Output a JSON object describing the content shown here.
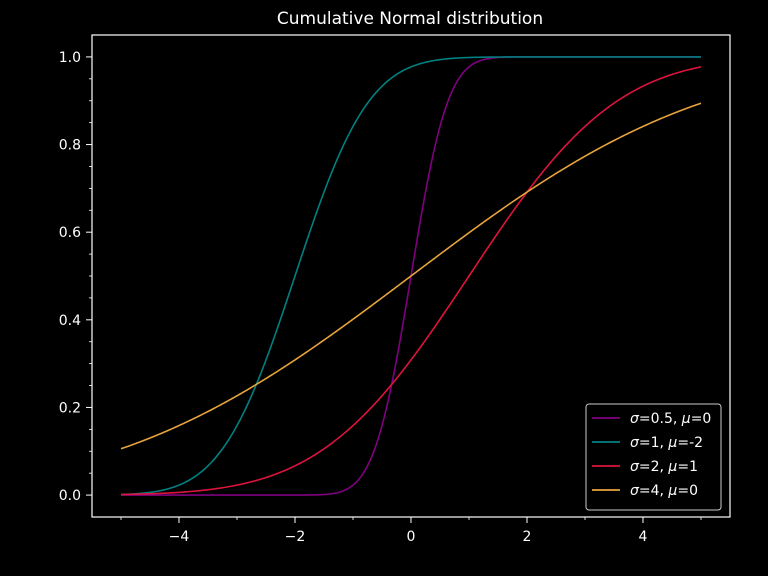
{
  "chart_data": {
    "type": "line",
    "title": "Cumulative Normal distribution",
    "xlabel": "",
    "ylabel": "",
    "xlim": [
      -5.5,
      5.5
    ],
    "ylim": [
      -0.05,
      1.05
    ],
    "x_ticks": [
      -4,
      -2,
      0,
      2,
      4
    ],
    "x_tick_labels": [
      "−4",
      "−2",
      "0",
      "2",
      "4"
    ],
    "y_ticks": [
      0.0,
      0.2,
      0.4,
      0.6,
      0.8,
      1.0
    ],
    "y_tick_labels": [
      "0.0",
      "0.2",
      "0.4",
      "0.6",
      "0.8",
      "1.0"
    ],
    "x_range": [
      -5,
      5
    ],
    "legend_position": "lower-right",
    "background": "#000000",
    "foreground": "#ffffff",
    "series": [
      {
        "name_sigma": "0.5",
        "name_mu": "0",
        "sigma": 0.5,
        "mu": 0,
        "color": "#800080",
        "x": [
          -5,
          -4,
          -3,
          -2,
          -1.5,
          -1,
          -0.5,
          0,
          0.5,
          1,
          1.5,
          2,
          3,
          4,
          5
        ],
        "values": [
          0.0,
          0.0,
          0.0,
          0.0,
          0.001,
          0.023,
          0.159,
          0.5,
          0.841,
          0.977,
          0.999,
          1.0,
          1.0,
          1.0,
          1.0
        ]
      },
      {
        "name_sigma": "1",
        "name_mu": "-2",
        "sigma": 1,
        "mu": -2,
        "color": "#008080",
        "x": [
          -5,
          -4,
          -3,
          -2,
          -1,
          0,
          1,
          2,
          3,
          4,
          5
        ],
        "values": [
          0.001,
          0.023,
          0.159,
          0.5,
          0.841,
          0.977,
          0.999,
          1.0,
          1.0,
          1.0,
          1.0
        ]
      },
      {
        "name_sigma": "2",
        "name_mu": "1",
        "sigma": 2,
        "mu": 1,
        "color": "#dc143c",
        "x": [
          -5,
          -4,
          -3,
          -2,
          -1,
          0,
          1,
          2,
          3,
          4,
          5
        ],
        "values": [
          0.001,
          0.006,
          0.023,
          0.067,
          0.159,
          0.309,
          0.5,
          0.691,
          0.841,
          0.933,
          0.977
        ]
      },
      {
        "name_sigma": "4",
        "name_mu": "0",
        "sigma": 4,
        "mu": 0,
        "color": "#e8a33d",
        "x": [
          -5,
          -4,
          -3,
          -2,
          -1,
          0,
          1,
          2,
          3,
          4,
          5
        ],
        "values": [
          0.106,
          0.159,
          0.227,
          0.309,
          0.401,
          0.5,
          0.599,
          0.691,
          0.773,
          0.841,
          0.894
        ]
      }
    ]
  }
}
